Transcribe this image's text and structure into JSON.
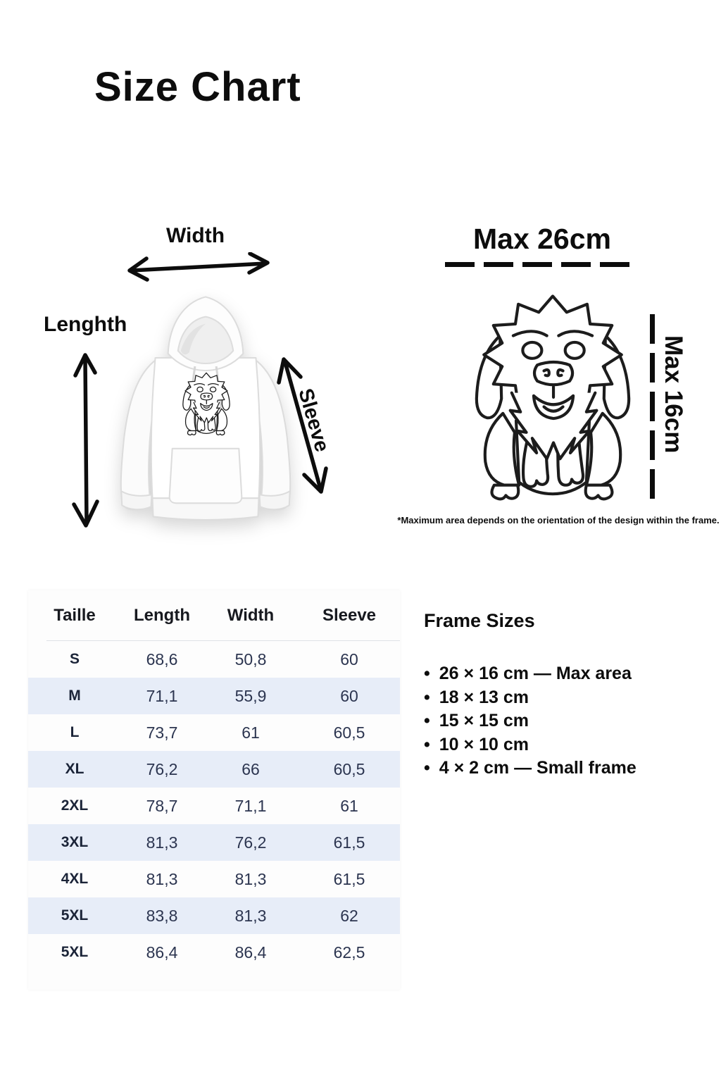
{
  "title": "Size Chart",
  "hoodie_diagram": {
    "width_label": "Width",
    "length_label": "Lenghth",
    "sleeve_label": "Sleeve"
  },
  "design_frame": {
    "max_width_label": "Max 26cm",
    "max_height_label": "Max 16cm",
    "footnote": "*Maximum area depends on the orientation of the design within the frame."
  },
  "size_table": {
    "columns": [
      "Taille",
      "Length",
      "Width",
      "Sleeve"
    ],
    "rows": [
      {
        "size": "S",
        "length": "68,6",
        "width": "50,8",
        "sleeve": "60"
      },
      {
        "size": "M",
        "length": "71,1",
        "width": "55,9",
        "sleeve": "60"
      },
      {
        "size": "L",
        "length": "73,7",
        "width": "61",
        "sleeve": "60,5"
      },
      {
        "size": "XL",
        "length": "76,2",
        "width": "66",
        "sleeve": "60,5"
      },
      {
        "size": "2XL",
        "length": "78,7",
        "width": "71,1",
        "sleeve": "61"
      },
      {
        "size": "3XL",
        "length": "81,3",
        "width": "76,2",
        "sleeve": "61,5"
      },
      {
        "size": "4XL",
        "length": "81,3",
        "width": "81,3",
        "sleeve": "61,5"
      },
      {
        "size": "5XL",
        "length": "83,8",
        "width": "81,3",
        "sleeve": "62"
      },
      {
        "size": "5XL",
        "length": "86,4",
        "width": "86,4",
        "sleeve": "62,5"
      }
    ]
  },
  "frame_sizes": {
    "heading": "Frame Sizes",
    "bullet": "•",
    "items": [
      "26 × 16 cm — Max area",
      "18 × 13 cm",
      "15 × 15 cm",
      "10 × 10 cm",
      "4 × 2 cm — Small frame"
    ]
  },
  "colors": {
    "table_alt_row": "#e7edf8",
    "table_text": "#2c3550",
    "ink": "#0d0d0d"
  }
}
